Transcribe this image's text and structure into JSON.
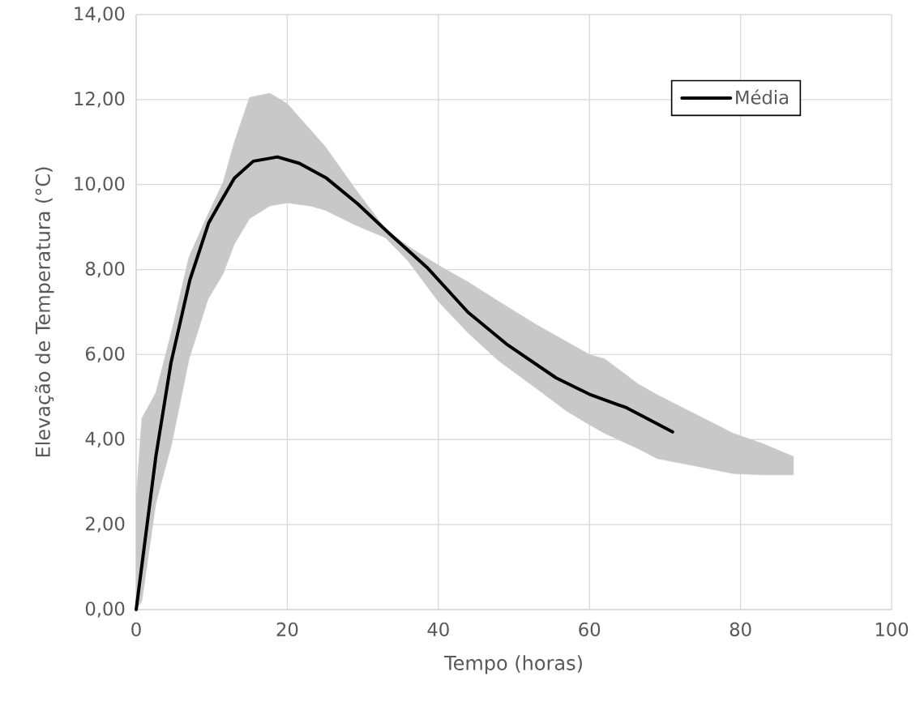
{
  "chart_data": {
    "type": "area",
    "xlabel": "Tempo (horas)",
    "ylabel": "Elevação de Temperatura (°C)",
    "xlim": [
      0,
      100
    ],
    "xticks": [
      0,
      20,
      40,
      60,
      80,
      100
    ],
    "ylim": [
      0,
      14
    ],
    "yticks": [
      {
        "value": 0,
        "label": "0,00"
      },
      {
        "value": 2,
        "label": "2,00"
      },
      {
        "value": 4,
        "label": "4,00"
      },
      {
        "value": 6,
        "label": "6,00"
      },
      {
        "value": 8,
        "label": "8,00"
      },
      {
        "value": 10,
        "label": "10,00"
      },
      {
        "value": 12,
        "label": "12,00"
      },
      {
        "value": 14,
        "label": "14,00"
      }
    ],
    "grid": true,
    "legend": "top right",
    "series": [
      {
        "color": "#c8c8c8",
        "x": [
          0,
          0.75,
          2.6,
          4.7,
          7,
          9.5,
          11.5,
          13,
          15,
          17.7,
          20,
          23,
          25,
          29,
          33,
          36,
          40,
          44,
          48,
          53,
          57,
          60,
          62,
          66.5,
          69,
          74,
          79,
          83,
          87
        ],
        "lower": [
          0,
          0.2,
          2.5,
          3.9,
          5.9,
          7.3,
          7.9,
          8.6,
          9.2,
          9.5,
          9.57,
          9.5,
          9.4,
          9.05,
          8.75,
          8.2,
          7.25,
          6.5,
          5.85,
          5.2,
          4.67,
          4.35,
          4.15,
          3.78,
          3.55,
          3.38,
          3.2,
          3.17,
          3.17
        ],
        "values": [
          null,
          null,
          null,
          null,
          null,
          null,
          null,
          null,
          null,
          null,
          null,
          null,
          null,
          null,
          null,
          null,
          null,
          null,
          null,
          null,
          null,
          null,
          null,
          null,
          null,
          null,
          null,
          null,
          null
        ],
        "upper": [
          2.6,
          4.5,
          5.1,
          6.55,
          8.3,
          9.3,
          10.05,
          11.0,
          12.05,
          12.15,
          11.9,
          11.3,
          10.9,
          9.9,
          8.95,
          8.55,
          8.1,
          7.7,
          7.25,
          6.7,
          6.3,
          6.0,
          5.9,
          5.3,
          5.05,
          4.6,
          4.15,
          3.9,
          3.6
        ]
      },
      {
        "type": "line",
        "name": "Média",
        "color": "#000000",
        "x": [
          0,
          2.6,
          4.6,
          7.1,
          9.6,
          11.2,
          13.0,
          15.5,
          18.7,
          21.6,
          25.2,
          29.3,
          33.5,
          38.5,
          43.9,
          49.0,
          55.6,
          60.2,
          64.9,
          71.0
        ],
        "values": [
          0,
          3.6,
          5.8,
          7.75,
          9.1,
          9.6,
          10.15,
          10.55,
          10.65,
          10.5,
          10.15,
          9.55,
          8.85,
          8.05,
          7.0,
          6.25,
          5.45,
          5.05,
          4.75,
          4.18
        ]
      }
    ]
  }
}
